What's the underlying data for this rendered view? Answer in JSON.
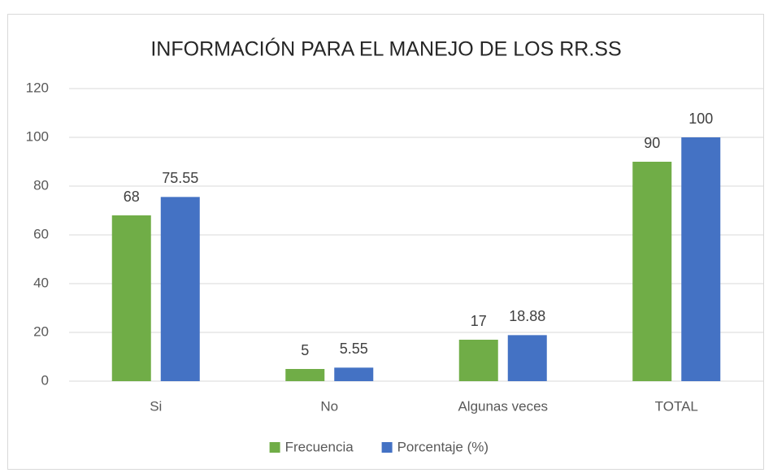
{
  "chart_data": {
    "type": "bar",
    "title": "INFORMACIÓN PARA EL MANEJO DE LOS RR.SS",
    "categories": [
      "Si",
      "No",
      "Algunas veces",
      "TOTAL"
    ],
    "series": [
      {
        "name": "Frecuencia",
        "color": "#70ad47",
        "values": [
          68,
          5,
          17,
          90
        ]
      },
      {
        "name": "Porcentaje (%)",
        "color": "#4472c4",
        "values": [
          75.55,
          5.55,
          18.88,
          100
        ]
      }
    ],
    "ylim": [
      0,
      120
    ],
    "yticks": [
      0,
      20,
      40,
      60,
      80,
      100,
      120
    ],
    "grid": true,
    "legend": "bottom"
  }
}
